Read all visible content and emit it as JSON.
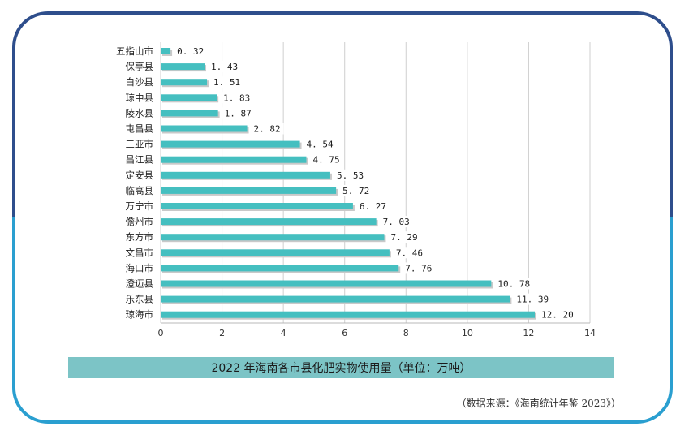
{
  "chart_data": {
    "type": "bar",
    "orientation": "horizontal",
    "title": "2022 年海南各市县化肥实物使用量（单位：万吨）",
    "xlim": [
      0,
      14
    ],
    "xticks": [
      "0",
      "2",
      "4",
      "6",
      "8",
      "10",
      "12",
      "14"
    ],
    "categories": [
      "五指山市",
      "保亭县",
      "白沙县",
      "琼中县",
      "陵水县",
      "屯昌县",
      "三亚市",
      "昌江县",
      "定安县",
      "临高县",
      "万宁市",
      "儋州市",
      "东方市",
      "文昌市",
      "海口市",
      "澄迈县",
      "乐东县",
      "琼海市"
    ],
    "values": [
      0.32,
      1.43,
      1.51,
      1.83,
      1.87,
      2.82,
      4.54,
      4.75,
      5.53,
      5.72,
      6.27,
      7.03,
      7.29,
      7.46,
      7.76,
      10.78,
      11.39,
      12.2
    ],
    "value_labels": [
      "0. 32",
      "1. 43",
      "1. 51",
      "1. 83",
      "1. 87",
      "2. 82",
      "4. 54",
      "4. 75",
      "5. 53",
      "5. 72",
      "6. 27",
      "7. 03",
      "7. 29",
      "7. 46",
      "7. 76",
      "10. 78",
      "11. 39",
      "12. 20"
    ],
    "bar_color": "#45bfc0",
    "grid": true
  },
  "caption": "2022 年海南各市县化肥实物使用量（单位：万吨）",
  "source": "（数据来源：《海南统计年鉴 2023》）",
  "colors": {
    "frame_top": "#2e4e8c",
    "frame_bottom": "#2a9fd0",
    "caption_bg": "#7cc4c6"
  }
}
